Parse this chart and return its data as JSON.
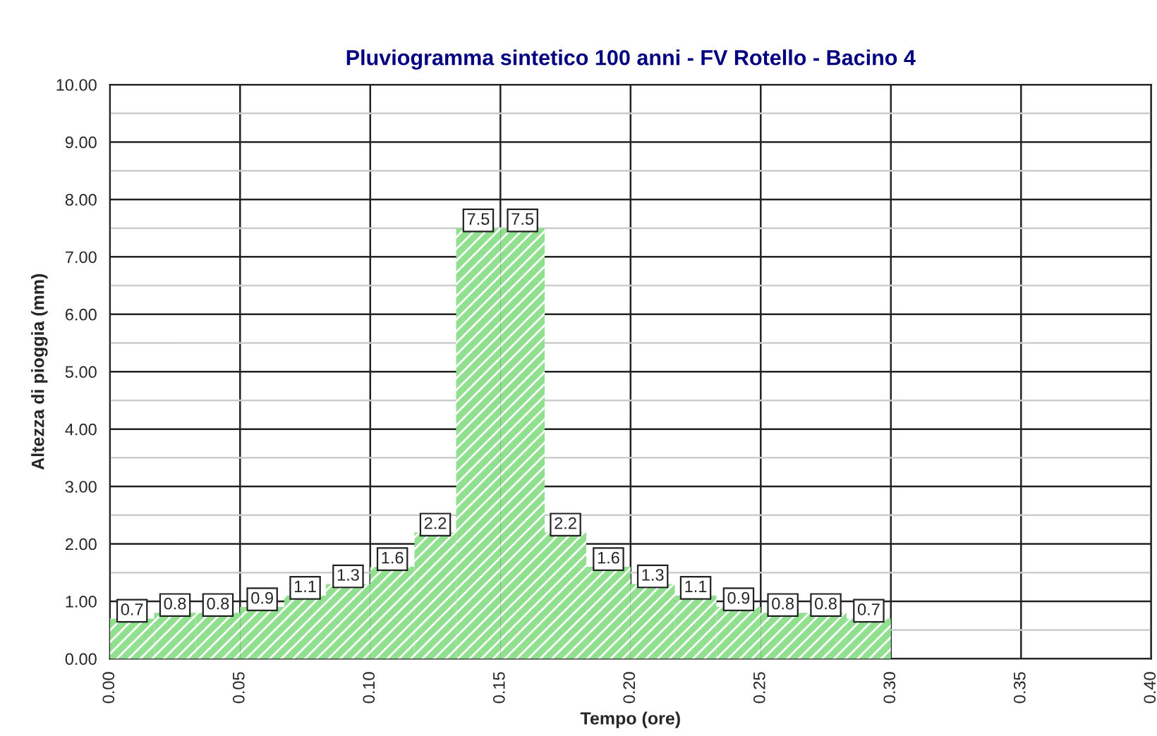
{
  "chart_data": {
    "type": "histogram",
    "title": "Pluviogramma sintetico 100 anni - FV Rotello - Bacino 4",
    "xlabel": "Tempo (ore)",
    "ylabel": "Altezza di pioggia (mm)",
    "bins": [
      0,
      0.017,
      0.033,
      0.05,
      0.067,
      0.083,
      0.1,
      0.117,
      0.133,
      0.15,
      0.167,
      0.183,
      0.2,
      0.217,
      0.233,
      0.25,
      0.267,
      0.283,
      0.3
    ],
    "values": [
      0.7,
      0.8,
      0.8,
      0.9,
      1.1,
      1.3,
      1.6,
      2.2,
      7.5,
      7.5,
      2.2,
      1.6,
      1.3,
      1.1,
      0.9,
      0.8,
      0.8,
      0.7
    ],
    "color": "#90e090",
    "data_labels": true,
    "xlim": [
      0,
      0.4
    ],
    "xticks": [
      {
        "value": 0,
        "label": "0.00"
      },
      {
        "value": 0.05,
        "label": "0.05"
      },
      {
        "value": 0.1,
        "label": "0.10"
      },
      {
        "value": 0.15,
        "label": "0.15"
      },
      {
        "value": 0.2,
        "label": "0.20"
      },
      {
        "value": 0.25,
        "label": "0.25"
      },
      {
        "value": 0.3,
        "label": "0.30"
      },
      {
        "value": 0.35,
        "label": "0.35"
      },
      {
        "value": 0.4,
        "label": "0.40"
      }
    ],
    "ylim": [
      0,
      10
    ],
    "yticks": [
      {
        "value": 0,
        "label": "0.00"
      },
      {
        "value": 1,
        "label": "1.00"
      },
      {
        "value": 2,
        "label": "2.00"
      },
      {
        "value": 3,
        "label": "3.00"
      },
      {
        "value": 4,
        "label": "4.00"
      },
      {
        "value": 5,
        "label": "5.00"
      },
      {
        "value": 6,
        "label": "6.00"
      },
      {
        "value": 7,
        "label": "7.00"
      },
      {
        "value": 8,
        "label": "8.00"
      },
      {
        "value": 9,
        "label": "9.00"
      },
      {
        "value": 10,
        "label": "10.00"
      }
    ],
    "grid": true
  }
}
